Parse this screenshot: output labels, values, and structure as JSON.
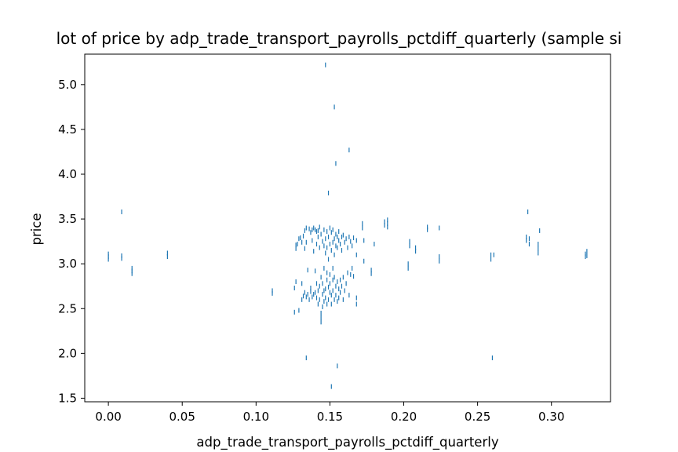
{
  "chart_data": {
    "type": "scatter",
    "title": "lot of price by adp_trade_transport_payrolls_pctdiff_quarterly (sample si",
    "xlabel": "adp_trade_transport_payrolls_pctdiff_quarterly",
    "ylabel": "price",
    "xlim": [
      -0.016,
      0.34
    ],
    "ylim": [
      1.46,
      5.34
    ],
    "xticks": [
      0.0,
      0.05,
      0.1,
      0.15,
      0.2,
      0.25,
      0.3
    ],
    "xtick_labels": [
      "0.00",
      "0.05",
      "0.10",
      "0.15",
      "0.20",
      "0.25",
      "0.30"
    ],
    "yticks": [
      1.5,
      2.0,
      2.5,
      3.0,
      3.5,
      4.0,
      4.5,
      5.0
    ],
    "ytick_labels": [
      "1.5",
      "2.0",
      "2.5",
      "3.0",
      "3.5",
      "4.0",
      "4.5",
      "5.0"
    ],
    "grid": false,
    "marker_color": "#1f77b4",
    "series": [
      {
        "points": [
          [
            0.0,
            3.05
          ],
          [
            0.0,
            3.08
          ],
          [
            0.0,
            3.11
          ],
          [
            0.009,
            3.06
          ],
          [
            0.009,
            3.09
          ],
          [
            0.009,
            3.58
          ],
          [
            0.016,
            2.89
          ],
          [
            0.016,
            2.92
          ],
          [
            0.016,
            2.95
          ],
          [
            0.04,
            3.08
          ],
          [
            0.04,
            3.12
          ],
          [
            0.111,
            2.67
          ],
          [
            0.111,
            2.7
          ],
          [
            0.126,
            2.46
          ],
          [
            0.126,
            2.73
          ],
          [
            0.127,
            2.8
          ],
          [
            0.127,
            3.17
          ],
          [
            0.127,
            3.21
          ],
          [
            0.128,
            3.22
          ],
          [
            0.129,
            3.28
          ],
          [
            0.129,
            2.48
          ],
          [
            0.13,
            3.29
          ],
          [
            0.131,
            3.24
          ],
          [
            0.131,
            2.6
          ],
          [
            0.131,
            2.78
          ],
          [
            0.132,
            3.31
          ],
          [
            0.132,
            2.64
          ],
          [
            0.133,
            3.17
          ],
          [
            0.133,
            3.37
          ],
          [
            0.133,
            2.68
          ],
          [
            0.134,
            1.95
          ],
          [
            0.134,
            3.4
          ],
          [
            0.134,
            3.24
          ],
          [
            0.134,
            2.63
          ],
          [
            0.135,
            2.66
          ],
          [
            0.135,
            2.93
          ],
          [
            0.136,
            3.39
          ],
          [
            0.136,
            2.6
          ],
          [
            0.137,
            3.35
          ],
          [
            0.137,
            2.69
          ],
          [
            0.137,
            2.73
          ],
          [
            0.138,
            3.38
          ],
          [
            0.138,
            3.26
          ],
          [
            0.138,
            2.63
          ],
          [
            0.139,
            3.4
          ],
          [
            0.139,
            2.66
          ],
          [
            0.139,
            3.14
          ],
          [
            0.14,
            3.38
          ],
          [
            0.14,
            2.68
          ],
          [
            0.14,
            2.92
          ],
          [
            0.141,
            3.36
          ],
          [
            0.141,
            3.22
          ],
          [
            0.141,
            2.62
          ],
          [
            0.141,
            2.78
          ],
          [
            0.142,
            3.3
          ],
          [
            0.142,
            3.37
          ],
          [
            0.142,
            2.7
          ],
          [
            0.142,
            2.55
          ],
          [
            0.143,
            3.41
          ],
          [
            0.143,
            3.18
          ],
          [
            0.143,
            2.6
          ],
          [
            0.143,
            2.75
          ],
          [
            0.144,
            2.35
          ],
          [
            0.144,
            2.4
          ],
          [
            0.144,
            2.45
          ],
          [
            0.144,
            3.33
          ],
          [
            0.144,
            2.85
          ],
          [
            0.145,
            3.25
          ],
          [
            0.145,
            2.52
          ],
          [
            0.145,
            2.66
          ],
          [
            0.145,
            2.78
          ],
          [
            0.146,
            3.38
          ],
          [
            0.146,
            3.2
          ],
          [
            0.146,
            2.7
          ],
          [
            0.146,
            2.58
          ],
          [
            0.146,
            2.95
          ],
          [
            0.147,
            5.22
          ],
          [
            0.147,
            3.28
          ],
          [
            0.147,
            3.12
          ],
          [
            0.147,
            2.72
          ],
          [
            0.147,
            2.62
          ],
          [
            0.148,
            3.36
          ],
          [
            0.148,
            3.18
          ],
          [
            0.148,
            2.82
          ],
          [
            0.148,
            2.55
          ],
          [
            0.148,
            2.9
          ],
          [
            0.149,
            3.79
          ],
          [
            0.149,
            3.3
          ],
          [
            0.149,
            3.05
          ],
          [
            0.149,
            2.74
          ],
          [
            0.149,
            2.6
          ],
          [
            0.15,
            3.22
          ],
          [
            0.15,
            3.4
          ],
          [
            0.15,
            2.68
          ],
          [
            0.15,
            2.78
          ],
          [
            0.15,
            2.88
          ],
          [
            0.151,
            1.63
          ],
          [
            0.151,
            3.35
          ],
          [
            0.151,
            3.15
          ],
          [
            0.151,
            2.65
          ],
          [
            0.151,
            2.55
          ],
          [
            0.152,
            3.38
          ],
          [
            0.152,
            3.24
          ],
          [
            0.152,
            2.82
          ],
          [
            0.152,
            2.7
          ],
          [
            0.152,
            2.95
          ],
          [
            0.153,
            4.75
          ],
          [
            0.153,
            3.28
          ],
          [
            0.153,
            3.1
          ],
          [
            0.153,
            2.85
          ],
          [
            0.153,
            2.6
          ],
          [
            0.154,
            4.12
          ],
          [
            0.154,
            3.33
          ],
          [
            0.154,
            3.2
          ],
          [
            0.154,
            2.75
          ],
          [
            0.154,
            2.65
          ],
          [
            0.155,
            1.86
          ],
          [
            0.155,
            3.3
          ],
          [
            0.155,
            3.18
          ],
          [
            0.155,
            2.8
          ],
          [
            0.155,
            2.58
          ],
          [
            0.156,
            3.36
          ],
          [
            0.156,
            3.26
          ],
          [
            0.156,
            2.72
          ],
          [
            0.156,
            2.62
          ],
          [
            0.157,
            3.22
          ],
          [
            0.157,
            2.82
          ],
          [
            0.157,
            2.68
          ],
          [
            0.158,
            3.3
          ],
          [
            0.158,
            3.15
          ],
          [
            0.158,
            2.75
          ],
          [
            0.159,
            3.32
          ],
          [
            0.159,
            2.6
          ],
          [
            0.159,
            2.85
          ],
          [
            0.16,
            3.24
          ],
          [
            0.16,
            2.7
          ],
          [
            0.161,
            3.28
          ],
          [
            0.161,
            2.78
          ],
          [
            0.162,
            3.18
          ],
          [
            0.162,
            2.9
          ],
          [
            0.163,
            4.27
          ],
          [
            0.163,
            3.3
          ],
          [
            0.163,
            2.65
          ],
          [
            0.164,
            3.25
          ],
          [
            0.164,
            2.88
          ],
          [
            0.165,
            3.2
          ],
          [
            0.165,
            2.95
          ],
          [
            0.166,
            3.29
          ],
          [
            0.166,
            2.86
          ],
          [
            0.168,
            3.26
          ],
          [
            0.168,
            2.62
          ],
          [
            0.168,
            2.55
          ],
          [
            0.168,
            3.1
          ],
          [
            0.172,
            3.45
          ],
          [
            0.172,
            3.4
          ],
          [
            0.173,
            3.03
          ],
          [
            0.173,
            3.26
          ],
          [
            0.178,
            2.89
          ],
          [
            0.178,
            2.93
          ],
          [
            0.18,
            3.22
          ],
          [
            0.187,
            3.43
          ],
          [
            0.187,
            3.47
          ],
          [
            0.189,
            3.41
          ],
          [
            0.189,
            3.45
          ],
          [
            0.189,
            3.49
          ],
          [
            0.203,
            2.95
          ],
          [
            0.203,
            3.0
          ],
          [
            0.204,
            3.2
          ],
          [
            0.204,
            3.25
          ],
          [
            0.208,
            3.14
          ],
          [
            0.208,
            3.18
          ],
          [
            0.216,
            3.38
          ],
          [
            0.216,
            3.41
          ],
          [
            0.224,
            3.03
          ],
          [
            0.224,
            3.08
          ],
          [
            0.224,
            3.4
          ],
          [
            0.259,
            3.05
          ],
          [
            0.259,
            3.1
          ],
          [
            0.26,
            1.95
          ],
          [
            0.261,
            3.1
          ],
          [
            0.283,
            3.26
          ],
          [
            0.283,
            3.3
          ],
          [
            0.284,
            3.58
          ],
          [
            0.285,
            3.22
          ],
          [
            0.285,
            3.28
          ],
          [
            0.291,
            3.12
          ],
          [
            0.291,
            3.17
          ],
          [
            0.291,
            3.22
          ],
          [
            0.292,
            3.37
          ],
          [
            0.323,
            3.08
          ],
          [
            0.323,
            3.11
          ],
          [
            0.324,
            3.14
          ],
          [
            0.324,
            3.09
          ]
        ]
      }
    ]
  }
}
